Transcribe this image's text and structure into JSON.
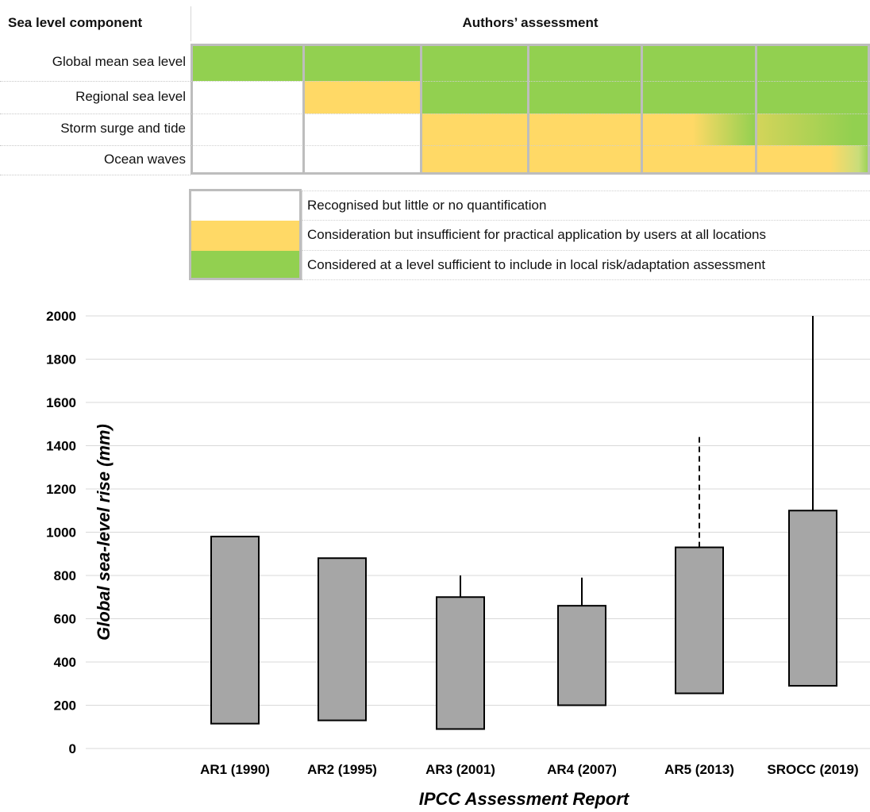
{
  "table": {
    "header_component": "Sea level component",
    "header_assessment": "Authors’ assessment",
    "colors": {
      "white": "#ffffff",
      "yellow": "#ffd966",
      "green": "#92d050"
    },
    "rows": [
      {
        "label": "Global mean sea level",
        "cells": [
          "green",
          "green",
          "green",
          "green",
          "green",
          "green"
        ]
      },
      {
        "label": "Regional sea level",
        "cells": [
          "white",
          "yellow",
          "green",
          "green",
          "green",
          "green"
        ]
      },
      {
        "label": "Storm surge and tide",
        "cells": [
          "white",
          "white",
          "yellow",
          "yellow",
          "yellow-to-green",
          "yellow-green-to-green"
        ]
      },
      {
        "label": "Ocean waves",
        "cells": [
          "white",
          "white",
          "yellow",
          "yellow",
          "yellow",
          "yellow-to-green-edge"
        ]
      }
    ]
  },
  "legend": [
    {
      "color": "white",
      "text": "Recognised but little or no quantification"
    },
    {
      "color": "yellow",
      "text": "Consideration but insufficient for practical application by users  at all locations"
    },
    {
      "color": "green",
      "text": "Considered at a level sufficient to include in local risk/adaptation assessment"
    }
  ],
  "chart_data": {
    "type": "bar",
    "xlabel": "IPCC Assessment Report",
    "ylabel": "Global sea-level rise (mm)",
    "ylim": [
      0,
      2000
    ],
    "yticks": [
      0,
      200,
      400,
      600,
      800,
      1000,
      1200,
      1400,
      1600,
      1800,
      2000
    ],
    "grid": true,
    "bar_color": "#a6a6a6",
    "categories": [
      "AR1 (1990)",
      "AR2 (1995)",
      "AR3 (2001)",
      "AR4 (2007)",
      "AR5 (2013)",
      "SROCC (2019)"
    ],
    "ranges": [
      {
        "low": 115,
        "high": 980,
        "whisker": null,
        "whisker_style": null
      },
      {
        "low": 130,
        "high": 880,
        "whisker": null,
        "whisker_style": null
      },
      {
        "low": 90,
        "high": 700,
        "whisker": 800,
        "whisker_style": "solid"
      },
      {
        "low": 200,
        "high": 660,
        "whisker": 790,
        "whisker_style": "solid"
      },
      {
        "low": 255,
        "high": 930,
        "whisker": 1440,
        "whisker_style": "dashed"
      },
      {
        "low": 290,
        "high": 1100,
        "whisker": 2000,
        "whisker_style": "solid"
      }
    ]
  }
}
